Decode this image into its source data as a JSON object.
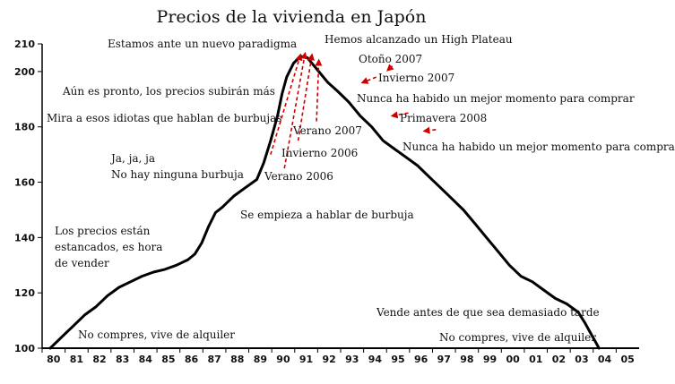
{
  "chart_data": {
    "type": "line",
    "title": "Precios de la vivienda en Japón",
    "xlabel": "",
    "ylabel": "",
    "categories": [
      "80",
      "81",
      "82",
      "83",
      "84",
      "85",
      "86",
      "87",
      "88",
      "89",
      "90",
      "91",
      "92",
      "93",
      "94",
      "95",
      "96",
      "97",
      "98",
      "99",
      "00",
      "01",
      "02",
      "03",
      "04",
      "05"
    ],
    "y_ticks": [
      100,
      120,
      140,
      160,
      180,
      200,
      210
    ],
    "ylim": [
      100,
      210
    ],
    "grid": false,
    "series": [
      {
        "x": [
          0,
          0.5,
          1,
          1.5,
          2,
          2.5,
          3,
          3.5,
          4,
          4.5,
          5,
          5.5,
          6,
          6.3,
          6.6,
          6.9,
          7.2,
          7.5,
          8,
          8.5,
          9,
          9.3,
          9.6,
          9.9,
          10.1,
          10.3,
          10.6,
          10.9,
          11.2,
          11.5,
          11.8,
          12.1,
          12.5,
          13,
          13.5,
          14,
          14.5,
          15,
          15.5,
          16,
          16.5,
          17,
          17.5,
          18,
          18.5,
          19,
          19.5,
          20,
          20.5,
          21,
          21.5,
          22,
          22.5,
          23,
          23.3,
          23.5,
          23.7,
          23.9
        ],
        "y": [
          100,
          104,
          108,
          112,
          115,
          119,
          122,
          124,
          126,
          127.5,
          128.5,
          130,
          132,
          134,
          138,
          144,
          149,
          151,
          155,
          158,
          161,
          167,
          175,
          184,
          192,
          198,
          203,
          205.5,
          205,
          202,
          199,
          196,
          193,
          189,
          184,
          180,
          175,
          172,
          169,
          166,
          162,
          158,
          154,
          150,
          145,
          140,
          135,
          130,
          126,
          124,
          121,
          118,
          116,
          113,
          109,
          106,
          103,
          100
        ]
      }
    ],
    "annotations": [
      {
        "text": "Estamos ante un nuevo paradigma"
      },
      {
        "text": "Hemos alcanzado un High Plateau"
      },
      {
        "text": "Otoño 2007"
      },
      {
        "text": "Invierno 2007"
      },
      {
        "text": "Aún es pronto, los precios subirán más"
      },
      {
        "text": "Nunca ha habido un mejor momento para comprar"
      },
      {
        "text": "Mira a esos idiotas que hablan de burbujas"
      },
      {
        "text": "Primavera 2008"
      },
      {
        "text": "Verano 2007"
      },
      {
        "text": "Nunca ha habido un mejor momento para comprar"
      },
      {
        "text": "Invierno 2006"
      },
      {
        "text": "Ja, ja, ja"
      },
      {
        "text": "No hay ninguna burbuja"
      },
      {
        "text": "Verano 2006"
      },
      {
        "text": "Se empieza a hablar de burbuja"
      },
      {
        "text": "Los precios están"
      },
      {
        "text": "estancados, es hora"
      },
      {
        "text": "de vender"
      },
      {
        "text": "Vende antes de que sea demasiado tarde"
      },
      {
        "text": "No compres, vive de alquiler"
      },
      {
        "text": "No compres, vive de alquiler"
      }
    ],
    "colors": {
      "line": "#000000",
      "arrows": "#cc0000"
    }
  }
}
